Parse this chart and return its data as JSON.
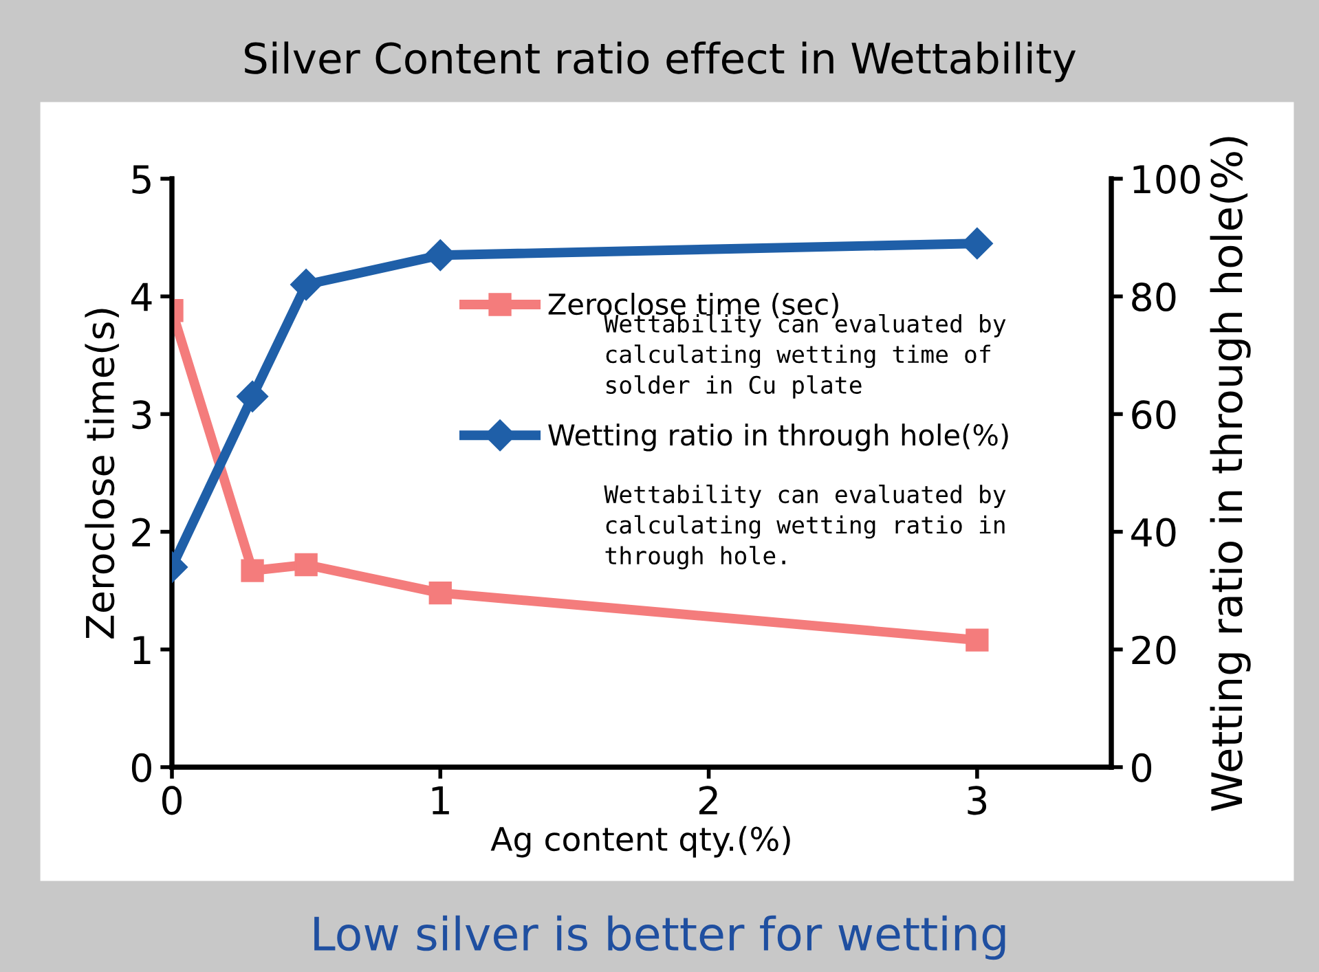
{
  "chart_data": {
    "type": "line",
    "title": "Silver Content ratio effect in Wettability",
    "xlabel": "Ag content qty.(%)",
    "ylabel": "Zeroclose time(s)",
    "y2label": "Wetting ratio in through hole(%)",
    "x": [
      0,
      0.3,
      0.5,
      1,
      3
    ],
    "series": [
      {
        "name": "Zeroclose time (sec)",
        "color": "#f47c7c",
        "marker": "square",
        "values": [
          3.88,
          1.67,
          1.72,
          1.48,
          1.08
        ]
      },
      {
        "name": "Wetting ratio in through hole(%)",
        "color": "#1f5fa8",
        "marker": "diamond",
        "axis": "y2",
        "values": [
          34,
          63,
          82,
          87,
          89
        ]
      }
    ],
    "xlim": [
      0,
      3.5
    ],
    "xticks": [
      0,
      1,
      2,
      3
    ],
    "ylim": [
      0,
      5
    ],
    "yticks": [
      0,
      1,
      2,
      3,
      4,
      5
    ],
    "y2lim": [
      0,
      100
    ],
    "y2ticks": [
      0,
      20,
      40,
      60,
      80,
      100
    ],
    "grid": false,
    "legend": "top right",
    "line_style": "solid",
    "annotations": [
      "Wettability can evaluated by\ncalculating wetting time of\nsolder in Cu plate",
      "Wettability can evaluated by\ncalculating wetting ratio in\nthrough hole.",
      "Low silver is better for wetting"
    ]
  }
}
